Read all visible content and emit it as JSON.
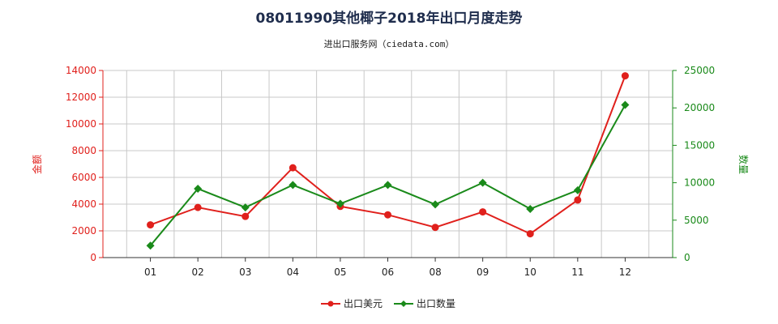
{
  "title": "08011990其他椰子2018年出口月度走势",
  "subtitle": "进出口服务网（ciedata.com）",
  "colors": {
    "left_axis": "#e0201c",
    "right_axis": "#1a8a1a",
    "grid": "#c8c8c8",
    "series_usd": "#e0201c",
    "series_qty": "#1a8a1a"
  },
  "chart_data": {
    "type": "line",
    "categories": [
      "01",
      "02",
      "03",
      "04",
      "05",
      "06",
      "08",
      "09",
      "10",
      "11",
      "12"
    ],
    "y_left": {
      "label": "金额",
      "ylim": [
        0,
        14000
      ],
      "ticks": [
        0,
        2000,
        4000,
        6000,
        8000,
        10000,
        12000,
        14000
      ]
    },
    "y_right": {
      "label": "数量",
      "ylim": [
        0,
        25000
      ],
      "ticks": [
        0,
        5000,
        10000,
        15000,
        20000,
        25000
      ]
    },
    "series": [
      {
        "name": "出口美元",
        "axis": "left",
        "values": [
          2450,
          3750,
          3080,
          6720,
          3830,
          3200,
          2260,
          3420,
          1780,
          4310,
          13600
        ]
      },
      {
        "name": "出口数量",
        "axis": "right",
        "values": [
          1600,
          9200,
          6700,
          9700,
          7200,
          9700,
          7100,
          10000,
          6500,
          9000,
          20400
        ]
      }
    ],
    "grid": true,
    "legend": "bottom-center"
  }
}
